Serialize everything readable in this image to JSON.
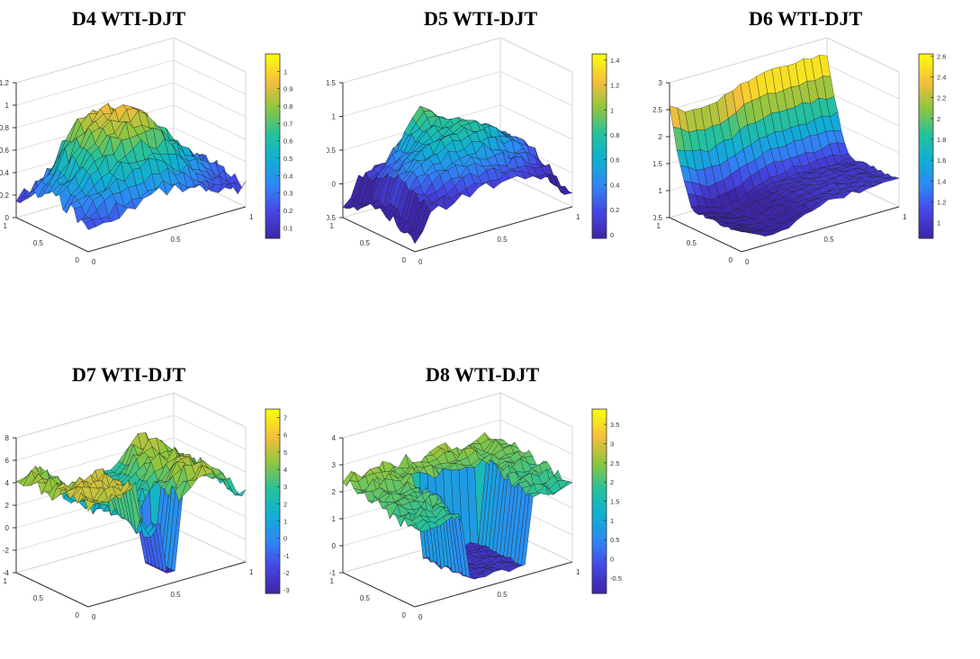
{
  "colors": {
    "colormap": [
      "#3e26a8",
      "#4646e4",
      "#2f87f5",
      "#0fb0d3",
      "#27c19a",
      "#8fc63f",
      "#f5bd3c",
      "#f9fb0e"
    ],
    "edge": "#1a1a1a",
    "box": "#d6d6d6",
    "axis": "#333333"
  },
  "panels": [
    {
      "title": "D4 WTI-DJT",
      "z_ticks": [
        0,
        0.2,
        0.4,
        0.6,
        0.8,
        1,
        1.2
      ],
      "z_tick_labels": [
        "0",
        "0.2",
        "0.4",
        "0.6",
        "0.8",
        "1",
        "1.2"
      ],
      "zlim": [
        0,
        1.2
      ],
      "colorbar_ticks": [
        0.1,
        0.2,
        0.3,
        0.4,
        0.5,
        0.6,
        0.7,
        0.8,
        0.9,
        1
      ],
      "colorbar_labels": [
        "0.1",
        "0.2",
        "0.3",
        "0.4",
        "0.5",
        "0.6",
        "0.7",
        "0.8",
        "0.9",
        "1"
      ],
      "clim": [
        0.04,
        1.1
      ],
      "x_tick_labels": [
        "0",
        "0.5",
        "1"
      ],
      "y_tick_labels": [
        "0",
        "0.5",
        "1"
      ],
      "surface": "d4"
    },
    {
      "title": "D5 WTI-DJT",
      "z_ticks": [
        -0.5,
        0,
        0.5,
        1,
        1.5
      ],
      "z_tick_labels": [
        "-0.5",
        "0",
        "0.5",
        "1",
        "1.5"
      ],
      "zlim": [
        -0.5,
        1.5
      ],
      "colorbar_ticks": [
        0,
        0.2,
        0.4,
        0.6,
        0.8,
        1,
        1.2,
        1.4
      ],
      "colorbar_labels": [
        "0",
        "0.2",
        "0.4",
        "0.6",
        "0.8",
        "1",
        "1.2",
        "1.4"
      ],
      "clim": [
        -0.03,
        1.45
      ],
      "x_tick_labels": [
        "0",
        "0.5",
        "1"
      ],
      "y_tick_labels": [
        "0",
        "0.5",
        "1"
      ],
      "surface": "d5"
    },
    {
      "title": "D6 WTI-DJT",
      "z_ticks": [
        0.5,
        1,
        1.5,
        2,
        2.5,
        3
      ],
      "z_tick_labels": [
        "0.5",
        "1",
        "1.5",
        "2",
        "2.5",
        "3"
      ],
      "zlim": [
        0.5,
        3
      ],
      "colorbar_ticks": [
        1,
        1.2,
        1.4,
        1.6,
        1.8,
        2,
        2.2,
        2.4,
        2.6
      ],
      "colorbar_labels": [
        "1",
        "1.2",
        "1.4",
        "1.6",
        "1.8",
        "2",
        "2.2",
        "2.4",
        "2.6"
      ],
      "clim": [
        0.85,
        2.62
      ],
      "x_tick_labels": [
        "0",
        "0.5",
        "1"
      ],
      "y_tick_labels": [
        "0",
        "0.5",
        "1"
      ],
      "surface": "d6"
    },
    {
      "title": "D7 WTI-DJT",
      "z_ticks": [
        -4,
        -2,
        0,
        2,
        4,
        6,
        8
      ],
      "z_tick_labels": [
        "-4",
        "-2",
        "0",
        "2",
        "4",
        "6",
        "8"
      ],
      "zlim": [
        -4,
        8
      ],
      "colorbar_ticks": [
        -3,
        -2,
        -1,
        0,
        1,
        2,
        3,
        4,
        5,
        6,
        7
      ],
      "colorbar_labels": [
        "-3",
        "-2",
        "-1",
        "0",
        "1",
        "2",
        "3",
        "4",
        "5",
        "6",
        "7"
      ],
      "clim": [
        -3.2,
        7.5
      ],
      "x_tick_labels": [
        "0",
        "0.5",
        "1"
      ],
      "y_tick_labels": [
        "0",
        "0.5",
        "1"
      ],
      "surface": "d7"
    },
    {
      "title": "D8 WTI-DJT",
      "z_ticks": [
        -1,
        0,
        1,
        2,
        3,
        4
      ],
      "z_tick_labels": [
        "-1",
        "0",
        "1",
        "2",
        "3",
        "4"
      ],
      "zlim": [
        -1,
        4
      ],
      "colorbar_ticks": [
        -0.5,
        0,
        0.5,
        1,
        1.5,
        2,
        2.5,
        3,
        3.5
      ],
      "colorbar_labels": [
        "-0.5",
        "0",
        "0.5",
        "1",
        "1.5",
        "2",
        "2.5",
        "3",
        "3.5"
      ],
      "clim": [
        -0.9,
        3.9
      ],
      "x_tick_labels": [
        "0",
        "0.5",
        "1"
      ],
      "y_tick_labels": [
        "0",
        "0.5",
        "1"
      ],
      "surface": "d8"
    }
  ],
  "chart_data": [
    {
      "type": "surface",
      "title": "D4 WTI-DJT",
      "xlim": [
        0,
        1
      ],
      "ylim": [
        0,
        1
      ],
      "zlim": [
        0,
        1.2
      ],
      "grid": true,
      "colorbar": "right"
    },
    {
      "type": "surface",
      "title": "D5 WTI-DJT",
      "xlim": [
        0,
        1
      ],
      "ylim": [
        0,
        1
      ],
      "zlim": [
        -0.5,
        1.5
      ],
      "grid": true,
      "colorbar": "right"
    },
    {
      "type": "surface",
      "title": "D6 WTI-DJT",
      "xlim": [
        0,
        1
      ],
      "ylim": [
        0,
        1
      ],
      "zlim": [
        0.5,
        3
      ],
      "grid": true,
      "colorbar": "right"
    },
    {
      "type": "surface",
      "title": "D7 WTI-DJT",
      "xlim": [
        0,
        1
      ],
      "ylim": [
        0,
        1
      ],
      "zlim": [
        -4,
        8
      ],
      "grid": true,
      "colorbar": "right"
    },
    {
      "type": "surface",
      "title": "D8 WTI-DJT",
      "xlim": [
        0,
        1
      ],
      "ylim": [
        0,
        1
      ],
      "zlim": [
        -1,
        4
      ],
      "grid": true,
      "colorbar": "right"
    }
  ]
}
